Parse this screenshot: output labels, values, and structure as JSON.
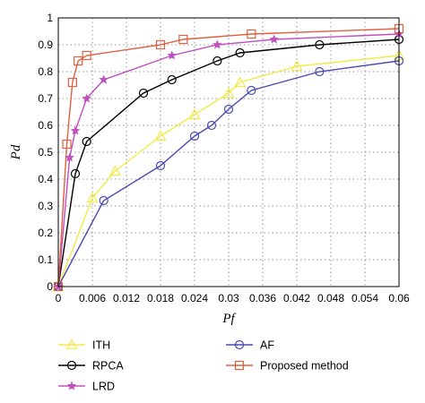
{
  "chart_data": {
    "type": "line",
    "title": "",
    "xlabel": "Pf",
    "ylabel": "Pd",
    "xlim": [
      0,
      0.06
    ],
    "ylim": [
      0,
      1
    ],
    "x_ticks": [
      "0",
      "0.006",
      "0.012",
      "0.018",
      "0.024",
      "0.03",
      "0.036",
      "0.042",
      "0.048",
      "0.054",
      "0.06"
    ],
    "y_ticks": [
      "0",
      "0.1",
      "0.2",
      "0.3",
      "0.4",
      "0.5",
      "0.6",
      "0.7",
      "0.8",
      "0.9",
      "1"
    ],
    "grid": true,
    "legend_position": "below",
    "series": [
      {
        "name": "ITH",
        "color": "#f5e94a",
        "marker": "triangle",
        "points": [
          [
            0,
            0
          ],
          [
            0.006,
            0.33
          ],
          [
            0.01,
            0.43
          ],
          [
            0.018,
            0.56
          ],
          [
            0.024,
            0.64
          ],
          [
            0.03,
            0.72
          ],
          [
            0.032,
            0.76
          ],
          [
            0.042,
            0.82
          ],
          [
            0.06,
            0.86
          ]
        ]
      },
      {
        "name": "RPCA",
        "color": "#000000",
        "marker": "circle",
        "points": [
          [
            0,
            0
          ],
          [
            0.003,
            0.42
          ],
          [
            0.005,
            0.54
          ],
          [
            0.015,
            0.72
          ],
          [
            0.02,
            0.77
          ],
          [
            0.028,
            0.84
          ],
          [
            0.032,
            0.87
          ],
          [
            0.046,
            0.9
          ],
          [
            0.06,
            0.92
          ]
        ]
      },
      {
        "name": "LRD",
        "color": "#c050c0",
        "marker": "star",
        "points": [
          [
            0,
            0
          ],
          [
            0.002,
            0.48
          ],
          [
            0.003,
            0.58
          ],
          [
            0.005,
            0.7
          ],
          [
            0.008,
            0.77
          ],
          [
            0.02,
            0.86
          ],
          [
            0.028,
            0.9
          ],
          [
            0.038,
            0.92
          ],
          [
            0.06,
            0.94
          ]
        ]
      },
      {
        "name": "AF",
        "color": "#4a4ab0",
        "marker": "circle",
        "points": [
          [
            0,
            0
          ],
          [
            0.008,
            0.32
          ],
          [
            0.018,
            0.45
          ],
          [
            0.024,
            0.56
          ],
          [
            0.027,
            0.6
          ],
          [
            0.03,
            0.66
          ],
          [
            0.034,
            0.73
          ],
          [
            0.046,
            0.8
          ],
          [
            0.06,
            0.84
          ]
        ]
      },
      {
        "name": "Proposed method",
        "color": "#e06040",
        "marker": "square",
        "points": [
          [
            0,
            0
          ],
          [
            0.0015,
            0.53
          ],
          [
            0.0025,
            0.76
          ],
          [
            0.0035,
            0.84
          ],
          [
            0.005,
            0.86
          ],
          [
            0.018,
            0.9
          ],
          [
            0.022,
            0.92
          ],
          [
            0.034,
            0.94
          ],
          [
            0.06,
            0.96
          ]
        ]
      }
    ]
  }
}
